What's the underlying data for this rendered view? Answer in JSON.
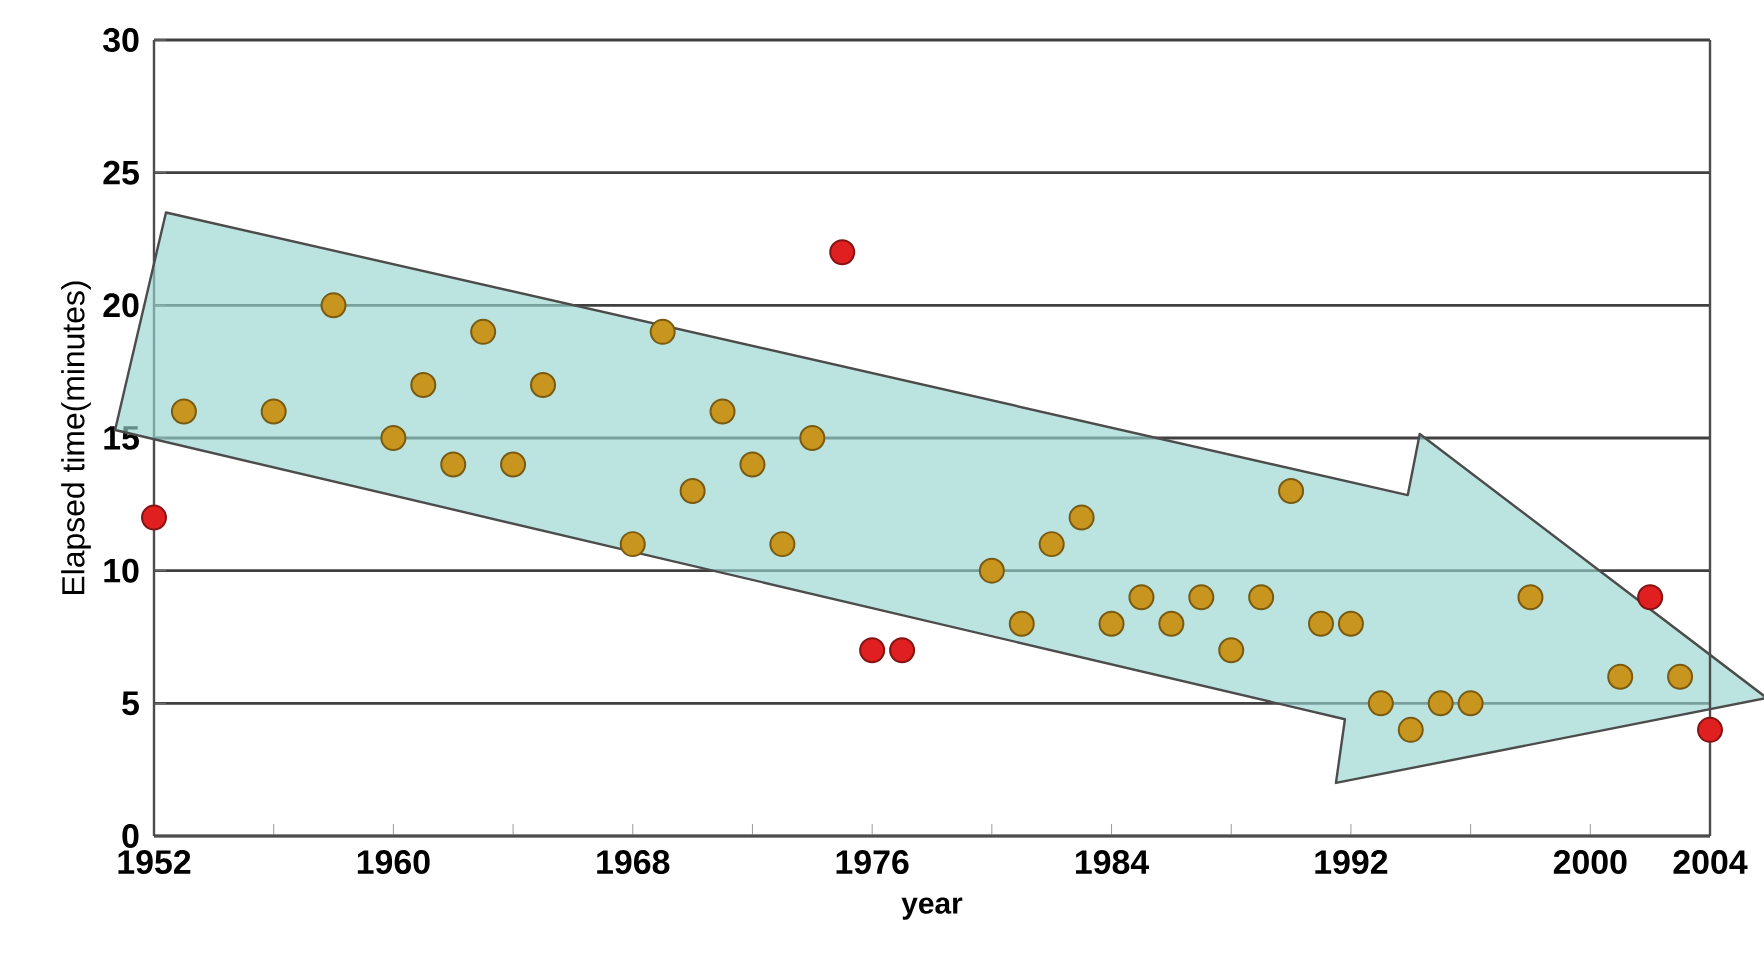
{
  "chart_data": {
    "type": "scatter",
    "xlabel": "year",
    "ylabel": "Elapsed time(minutes)",
    "xlim": [
      1952,
      2004
    ],
    "ylim": [
      0,
      30
    ],
    "xticks": [
      1952,
      {
        "value": 1956,
        "label": null
      },
      1960,
      {
        "value": 1964,
        "label": null
      },
      1968,
      {
        "value": 1972,
        "label": null
      },
      1976,
      {
        "value": 1980,
        "label": null
      },
      1984,
      {
        "value": 1988,
        "label": null
      },
      1992,
      {
        "value": 1996,
        "label": null
      },
      2000,
      2004
    ],
    "yticks": [
      0,
      5,
      10,
      15,
      20,
      25,
      30
    ],
    "grid": "y",
    "marker": "circle",
    "series": [
      {
        "color": "#c8961e",
        "x": [
          1953,
          1956,
          1958,
          1960,
          1961,
          1962,
          1963,
          1964,
          1965,
          1968,
          1969,
          1970,
          1971,
          1972,
          1973,
          1974,
          1980,
          1981,
          1982,
          1983,
          1984,
          1985,
          1986,
          1987,
          1988,
          1989,
          1990,
          1991,
          1992,
          1993,
          1994,
          1995,
          1996,
          1998,
          2001,
          2003
        ],
        "values": [
          16,
          16,
          20,
          15,
          17,
          14,
          19,
          14,
          17,
          11,
          19,
          13,
          16,
          14,
          11,
          15,
          10,
          8,
          11,
          12,
          8,
          9,
          8,
          9,
          7,
          9,
          13,
          8,
          8,
          5,
          4,
          5,
          5,
          9,
          6,
          6
        ]
      },
      {
        "color": "#e02020",
        "x": [
          1952,
          1975,
          1976,
          1977,
          2002,
          2004
        ],
        "values": [
          12,
          22,
          7,
          7,
          9,
          4
        ]
      }
    ]
  }
}
